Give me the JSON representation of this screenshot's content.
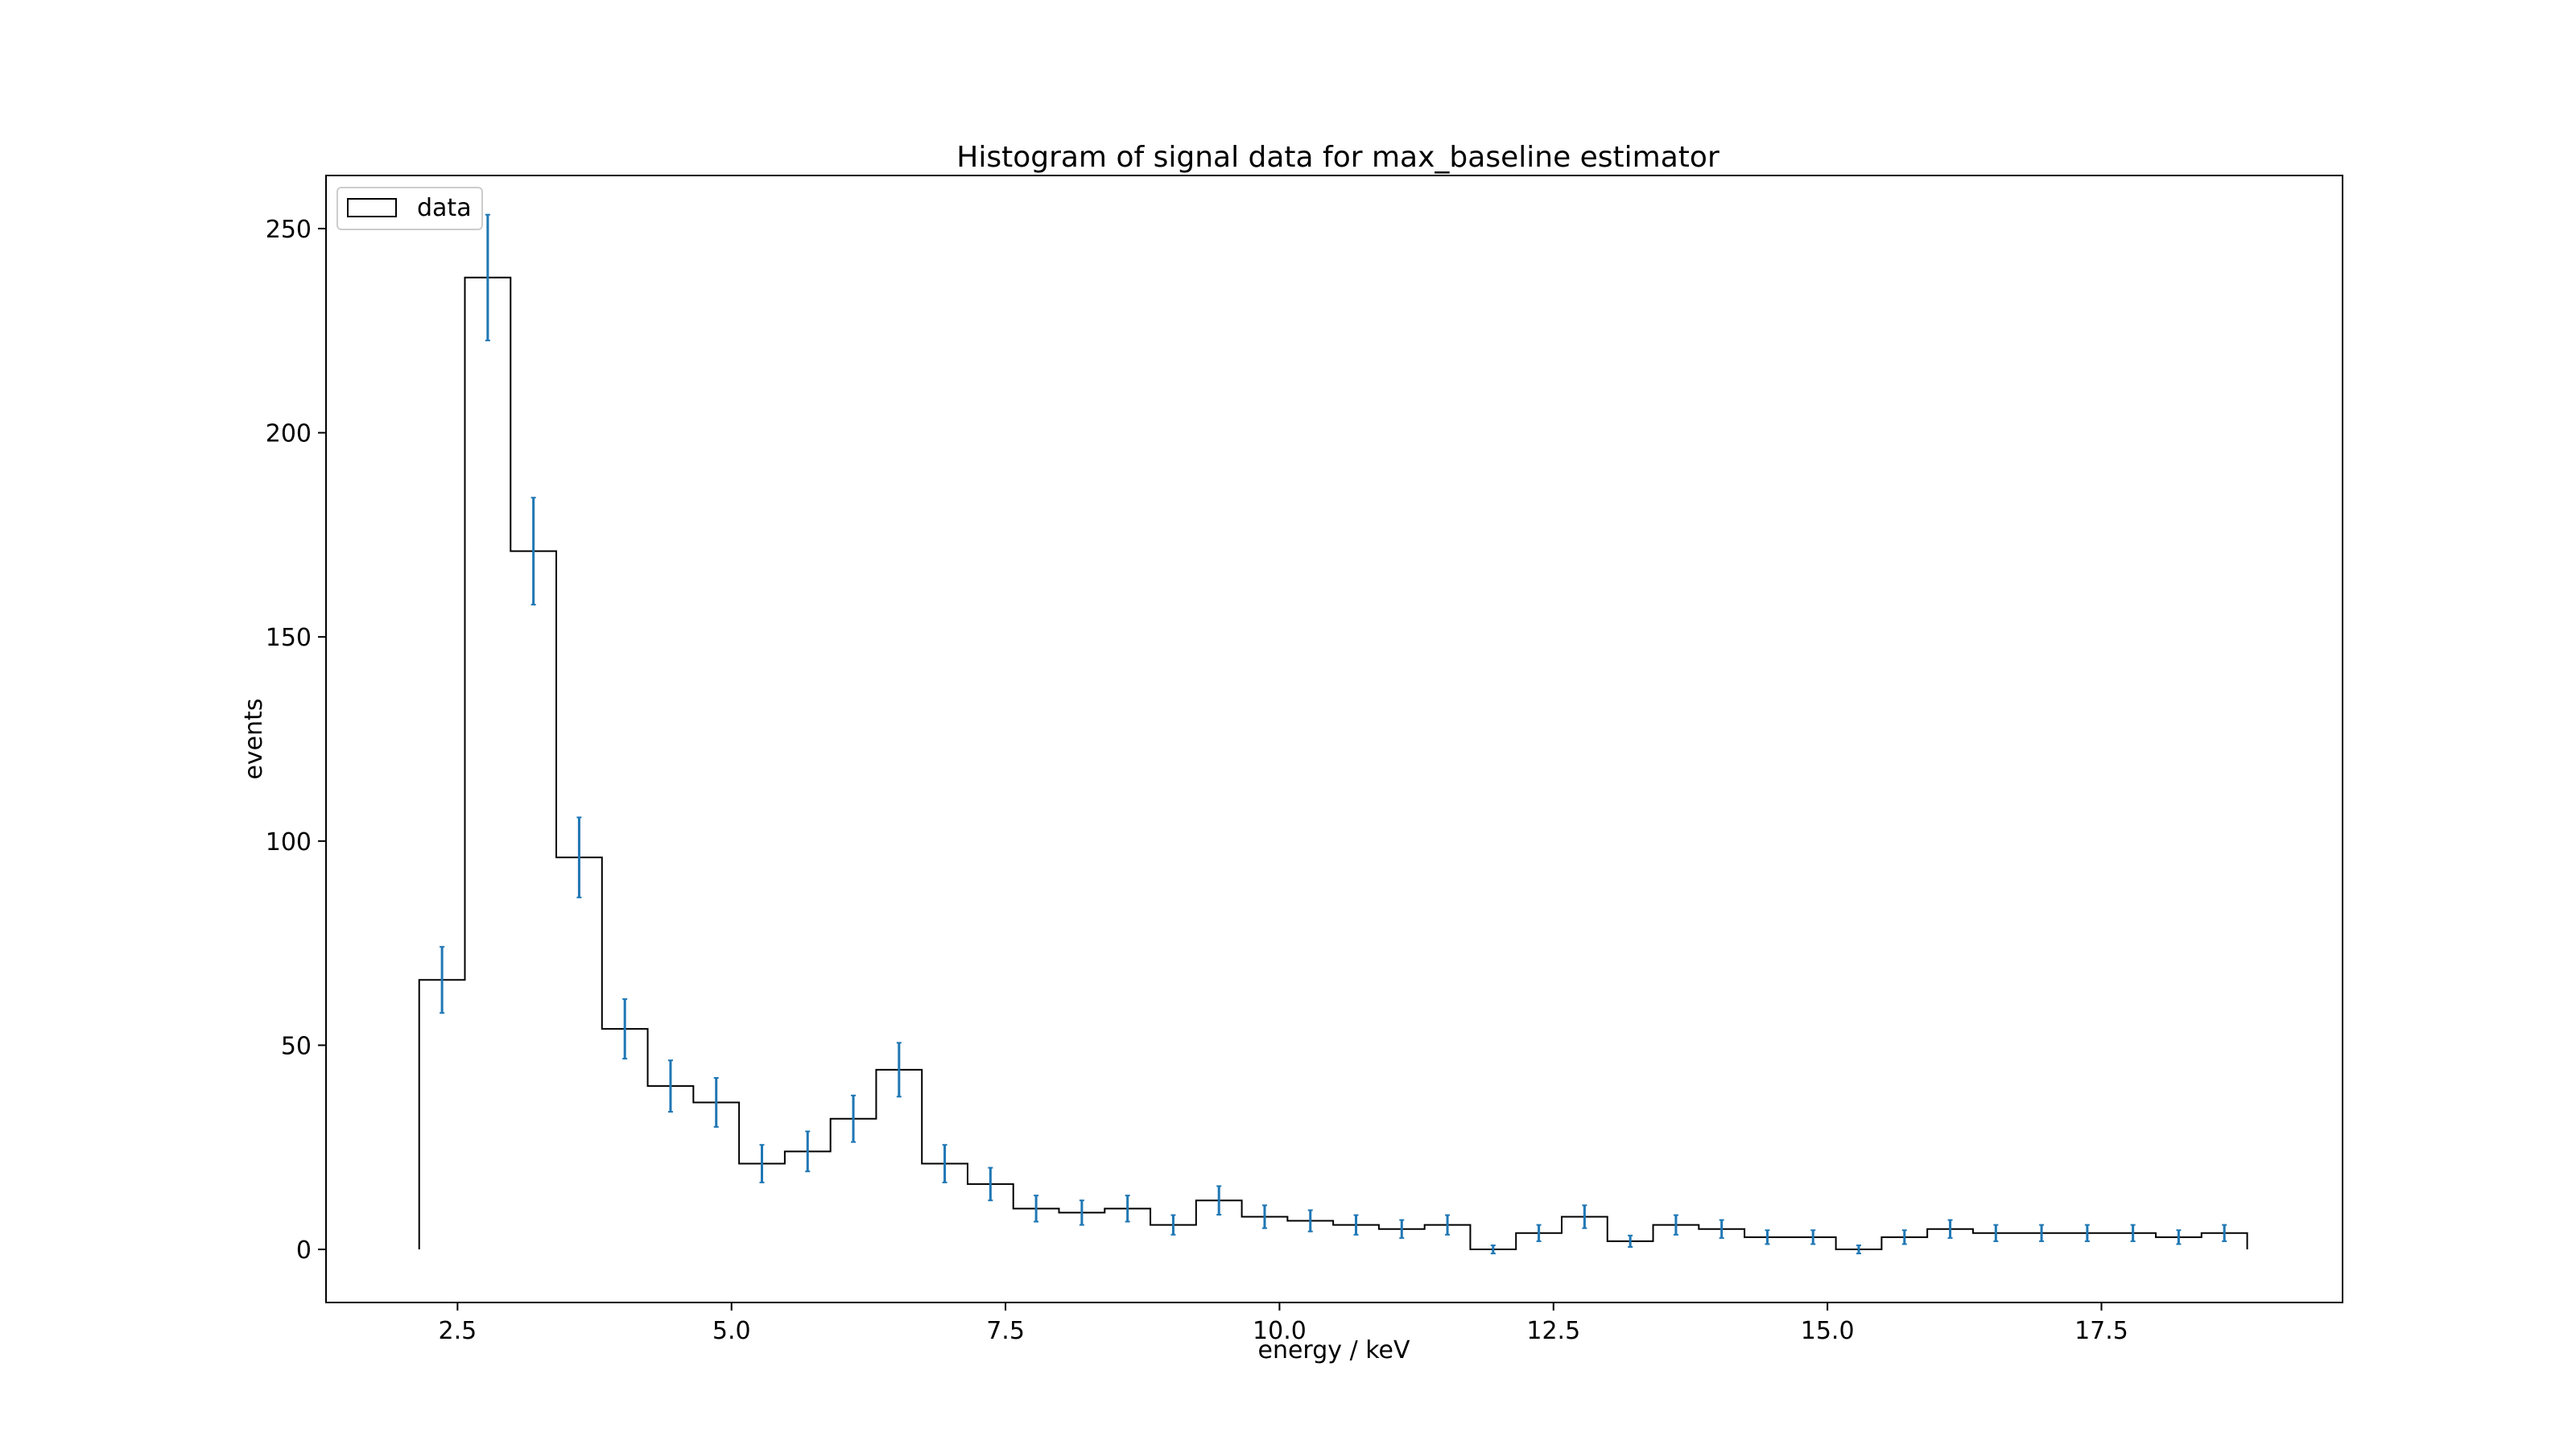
{
  "chart_data": {
    "type": "histogram",
    "title": "Histogram of signal data for max_baseline estimator",
    "xlabel": "energy / keV",
    "ylabel": "events",
    "xlim": [
      1.3,
      19.7
    ],
    "ylim": [
      -13,
      263
    ],
    "x_ticks": [
      2.5,
      5.0,
      7.5,
      10.0,
      12.5,
      15.0,
      17.5
    ],
    "x_tick_labels": [
      "2.5",
      "5.0",
      "7.5",
      "10.0",
      "12.5",
      "15.0",
      "17.5"
    ],
    "y_ticks": [
      0,
      50,
      100,
      150,
      200,
      250
    ],
    "y_tick_labels": [
      "0",
      "50",
      "100",
      "150",
      "200",
      "250"
    ],
    "grid": false,
    "legend": {
      "position": "top-left",
      "entries": [
        "data"
      ]
    },
    "bin_edges": [
      2.15,
      2.567,
      2.984,
      3.401,
      3.818,
      4.235,
      4.652,
      5.069,
      5.486,
      5.903,
      6.32,
      6.737,
      7.154,
      7.571,
      7.988,
      8.405,
      8.822,
      9.239,
      9.656,
      10.073,
      10.49,
      10.907,
      11.324,
      11.741,
      12.158,
      12.575,
      12.992,
      13.409,
      13.826,
      14.243,
      14.66,
      15.077,
      15.494,
      15.911,
      16.328,
      16.745,
      17.162,
      17.579,
      17.996,
      18.413,
      18.83
    ],
    "series": [
      {
        "name": "data",
        "values": [
          66,
          238,
          171,
          96,
          54,
          40,
          36,
          21,
          24,
          32,
          44,
          21,
          16,
          10,
          9,
          10,
          6,
          12,
          8,
          7,
          6,
          5,
          6,
          0,
          4,
          8,
          2,
          6,
          5,
          3,
          3,
          0,
          3,
          5,
          4,
          4,
          4,
          4,
          3,
          4
        ],
        "errors": [
          8.1,
          15.4,
          13.1,
          9.8,
          7.3,
          6.3,
          6.0,
          4.6,
          4.9,
          5.7,
          6.6,
          4.6,
          4.0,
          3.2,
          3.0,
          3.2,
          2.4,
          3.5,
          2.8,
          2.6,
          2.4,
          2.2,
          2.4,
          1.0,
          2.0,
          2.8,
          1.4,
          2.4,
          2.2,
          1.7,
          1.7,
          1.0,
          1.7,
          2.2,
          2.0,
          2.0,
          2.0,
          2.0,
          1.7,
          2.0
        ]
      }
    ],
    "colors": {
      "histogram_edge": "#000000",
      "error_bars": "#1f77b4",
      "axes": "#000000",
      "background": "#ffffff"
    }
  }
}
